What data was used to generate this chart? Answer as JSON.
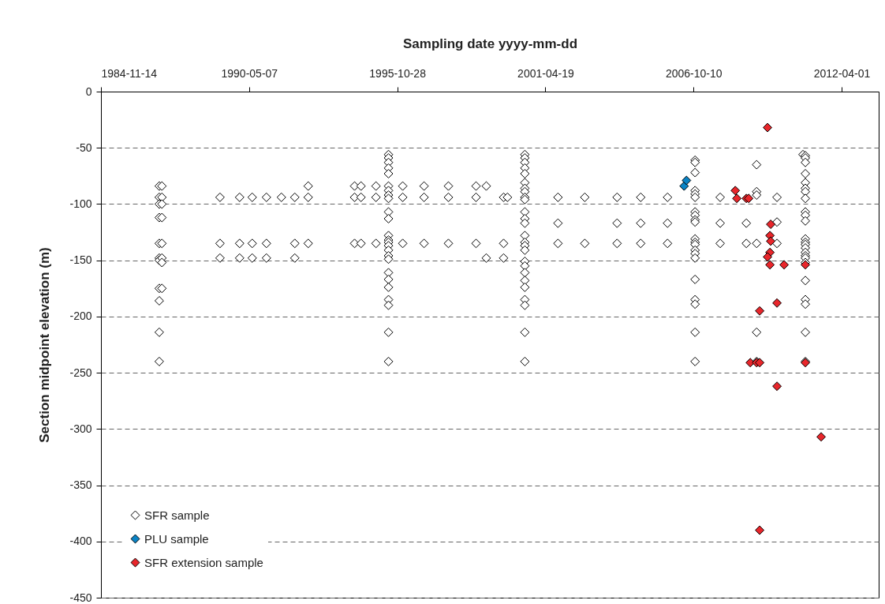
{
  "chart_data": {
    "type": "scatter",
    "xlabel": "Sampling date yyyy-mm-dd",
    "ylabel": "Section midpoint elevation  (m)",
    "xlim": [
      "1984-11-14",
      "2013-08-14"
    ],
    "xticks": [
      {
        "value": "1984-11-14",
        "label": "1984-11-14"
      },
      {
        "value": "1990-05-07",
        "label": "1990-05-07"
      },
      {
        "value": "1995-10-28",
        "label": "1995-10-28"
      },
      {
        "value": "2001-04-19",
        "label": "2001-04-19"
      },
      {
        "value": "2006-10-10",
        "label": "2006-10-10"
      },
      {
        "value": "2012-04-01",
        "label": "2012-04-01"
      }
    ],
    "ylim": [
      -450,
      0
    ],
    "yticks": [
      -450,
      -400,
      -350,
      -300,
      -250,
      -200,
      -150,
      -100,
      -50,
      0
    ],
    "grid": "y",
    "legend": "bottom left",
    "marker": "diamond",
    "series": [
      {
        "name": "SFR sample",
        "color": "#ffffff",
        "x": [
          "1987-01-10",
          "1987-01-10",
          "1987-01-10",
          "1987-01-10",
          "1987-01-10",
          "1987-01-10",
          "1987-01-10",
          "1987-01-10",
          "1987-01-10",
          "1987-01-10",
          "1987-01-10",
          "1987-02-15",
          "1987-02-15",
          "1987-02-15",
          "1987-02-15",
          "1987-02-15",
          "1987-02-15",
          "1987-02-15",
          "1987-02-15",
          "1989-04-09",
          "1989-04-09",
          "1989-04-09",
          "1989-12-30",
          "1989-12-30",
          "1989-12-30",
          "1990-06-18",
          "1990-06-18",
          "1990-06-18",
          "1990-12-27",
          "1990-12-27",
          "1990-12-27",
          "1991-07-17",
          "1992-01-14",
          "1992-01-14",
          "1992-01-14",
          "1992-07-13",
          "1992-07-13",
          "1992-07-13",
          "1994-03-31",
          "1994-03-31",
          "1994-03-31",
          "1994-06-26",
          "1994-06-26",
          "1994-06-26",
          "1995-01-14",
          "1995-01-14",
          "1995-01-14",
          "1995-07-02",
          "1995-07-02",
          "1995-07-02",
          "1995-07-02",
          "1995-07-02",
          "1995-07-02",
          "1995-07-02",
          "1995-07-02",
          "1995-07-02",
          "1995-07-02",
          "1995-07-02",
          "1995-07-02",
          "1995-07-02",
          "1995-07-02",
          "1995-07-02",
          "1995-07-02",
          "1995-07-02",
          "1995-07-02",
          "1995-07-02",
          "1995-07-02",
          "1995-07-02",
          "1995-07-02",
          "1995-07-02",
          "1995-07-02",
          "1995-07-02",
          "1996-01-10",
          "1996-01-10",
          "1996-01-10",
          "1996-10-24",
          "1996-10-24",
          "1996-10-24",
          "1997-09-18",
          "1997-09-18",
          "1997-09-18",
          "1998-09-26",
          "1998-09-26",
          "1998-09-26",
          "1999-02-11",
          "1999-02-11",
          "1999-10-03",
          "1999-10-03",
          "1999-10-03",
          "1999-11-24",
          "2000-07-16",
          "2000-07-16",
          "2000-07-16",
          "2000-07-16",
          "2000-07-16",
          "2000-07-16",
          "2000-07-16",
          "2000-07-16",
          "2000-07-16",
          "2000-07-16",
          "2000-07-16",
          "2000-07-16",
          "2000-07-16",
          "2000-07-16",
          "2000-07-16",
          "2000-07-16",
          "2000-07-16",
          "2000-07-16",
          "2000-07-16",
          "2000-07-16",
          "2000-07-16",
          "2000-07-16",
          "2000-07-16",
          "2000-07-16",
          "2000-07-16",
          "2000-07-16",
          "2001-10-06",
          "2001-10-06",
          "2001-10-06",
          "2002-10-03",
          "2002-10-03",
          "2003-12-13",
          "2003-12-13",
          "2003-12-13",
          "2004-10-27",
          "2004-10-27",
          "2004-10-27",
          "2005-10-24",
          "2005-10-24",
          "2005-10-24",
          "2006-10-31",
          "2006-10-31",
          "2006-10-31",
          "2006-10-31",
          "2006-10-31",
          "2006-10-31",
          "2006-10-31",
          "2006-10-31",
          "2006-10-31",
          "2006-10-31",
          "2006-10-31",
          "2006-10-31",
          "2006-10-31",
          "2006-10-31",
          "2006-10-31",
          "2006-10-31",
          "2006-10-31",
          "2006-10-31",
          "2006-10-31",
          "2006-10-31",
          "2006-10-31",
          "2007-10-05",
          "2007-10-05",
          "2007-10-05",
          "2008-09-22",
          "2008-09-22",
          "2009-02-08",
          "2009-02-08",
          "2009-02-08",
          "2009-02-08",
          "2009-02-08",
          "2009-02-08",
          "2009-11-10",
          "2009-11-10",
          "2009-11-10",
          "2010-10-27",
          "2010-11-28",
          "2010-11-28",
          "2010-11-28",
          "2010-11-28",
          "2010-11-28",
          "2010-11-28",
          "2010-11-28",
          "2010-11-28",
          "2010-11-28",
          "2010-11-28",
          "2010-11-28",
          "2010-11-28",
          "2010-11-28",
          "2010-11-28",
          "2010-11-28",
          "2010-11-28",
          "2010-11-28",
          "2010-11-28",
          "2010-11-28",
          "2010-11-28",
          "2010-11-28",
          "2010-11-28",
          "2010-11-28",
          "2010-11-28"
        ],
        "values": [
          -84,
          -94,
          -100,
          -112,
          -135,
          -148,
          -150,
          -175,
          -186,
          -214,
          -240,
          -84,
          -94,
          -100,
          -112,
          -135,
          -148,
          -152,
          -175,
          -94,
          -135,
          -148,
          -94,
          -135,
          -148,
          -94,
          -135,
          -148,
          -94,
          -135,
          -148,
          -94,
          -94,
          -135,
          -148,
          -84,
          -94,
          -135,
          -84,
          -94,
          -135,
          -84,
          -94,
          -135,
          -84,
          -94,
          -135,
          -56,
          -59,
          -63,
          -68,
          -73,
          -84,
          -88,
          -92,
          -95,
          -107,
          -113,
          -128,
          -132,
          -134,
          -137,
          -141,
          -146,
          -149,
          -161,
          -167,
          -174,
          -185,
          -190,
          -214,
          -240,
          -84,
          -94,
          -135,
          -84,
          -94,
          -135,
          -84,
          -94,
          -135,
          -84,
          -94,
          -135,
          -84,
          -148,
          -94,
          -135,
          -148,
          -94,
          -56,
          -59,
          -63,
          -68,
          -73,
          -81,
          -86,
          -89,
          -94,
          -96,
          -107,
          -113,
          -117,
          -128,
          -134,
          -137,
          -141,
          -151,
          -155,
          -161,
          -168,
          -174,
          -185,
          -190,
          -214,
          -240,
          -94,
          -117,
          -135,
          -94,
          -135,
          -94,
          -117,
          -135,
          -94,
          -117,
          -135,
          -94,
          -117,
          -135,
          -61,
          -63,
          -72,
          -88,
          -91,
          -94,
          -107,
          -110,
          -114,
          -116,
          -131,
          -134,
          -136,
          -141,
          -144,
          -148,
          -167,
          -185,
          -189,
          -214,
          -240,
          -94,
          -117,
          -135,
          -117,
          -135,
          -65,
          -89,
          -92,
          -135,
          -214,
          -240,
          -94,
          -116,
          -135,
          -56,
          -57,
          -59,
          -63,
          -73,
          -81,
          -86,
          -89,
          -95,
          -107,
          -110,
          -115,
          -131,
          -134,
          -136,
          -139,
          -143,
          -146,
          -148,
          -152,
          -168,
          -185,
          -189,
          -214,
          -240
        ]
      },
      {
        "name": "PLU sample",
        "color": "#0a84c6",
        "x": [
          "2006-06-05",
          "2006-07-07"
        ],
        "values": [
          -84,
          -79
        ]
      },
      {
        "name": "SFR extension sample",
        "color": "#e8262b",
        "x": [
          "2009-07-05",
          "2008-04-26",
          "2008-05-17",
          "2008-09-22",
          "2008-10-24",
          "2009-08-17",
          "2009-08-07",
          "2009-08-17",
          "2009-08-07",
          "2009-07-05",
          "2009-08-07",
          "2010-02-14",
          "2009-03-21",
          "2009-11-10",
          "2010-11-28",
          "2008-11-14",
          "2009-02-08",
          "2009-03-21",
          "2010-11-28",
          "2009-11-10",
          "2011-06-29",
          "2009-03-21"
        ],
        "values": [
          -32,
          -88,
          -95,
          -95,
          -95,
          -118,
          -128,
          -133,
          -143,
          -147,
          -154,
          -154,
          -195,
          -188,
          -154,
          -241,
          -241,
          -241,
          -241,
          -262,
          -307,
          -390
        ]
      }
    ]
  }
}
